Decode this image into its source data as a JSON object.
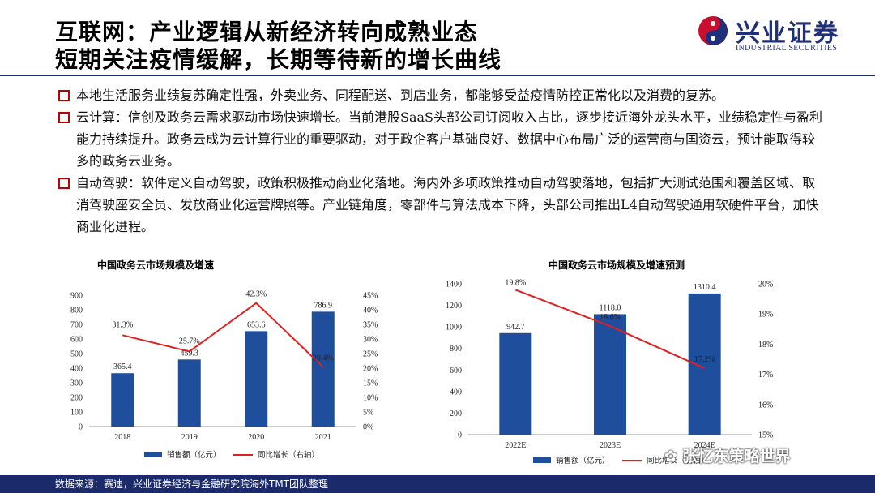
{
  "header": {
    "title_line1": "互联网：产业逻辑从新经济转向成熟业态",
    "title_line2": "短期关注疫情缓解，长期等待新的增长曲线"
  },
  "logo": {
    "cn": "兴业证券",
    "en": "INDUSTRIAL SECURITIES",
    "colors": {
      "red": "#c8102e",
      "blue": "#1f2f7a"
    }
  },
  "bullets": [
    "本地生活服务业绩复苏确定性强，外卖业务、同程配送、到店业务，都能够受益疫情防控正常化以及消费的复苏。",
    "云计算：信创及政务云需求驱动市场快速增长。当前港股SaaS头部公司订阅收入占比，逐步接近海外龙头水平，业绩稳定性与盈利能力持续提升。政务云成为云计算行业的重要驱动，对于政企客户基础良好、数据中心布局广泛的运营商与国资云，预计能取得较多的政务云业务。",
    "自动驾驶：软件定义自动驾驶，政策积极推动商业化落地。海内外多项政策推动自动驾驶落地，包括扩大测试范围和覆盖区域、取消驾驶座安全员、发放商业化运营牌照等。产业链角度，零部件与算法成本下降，头部公司推出L4自动驾驶通用软硬件平台，加快商业化进程。"
  ],
  "chart_data": [
    {
      "type": "bar",
      "title": "中国政务云市场规模及增速",
      "categories": [
        "2018",
        "2019",
        "2020",
        "2021"
      ],
      "series": [
        {
          "name": "销售额（亿元）",
          "type": "bar",
          "axis": "left",
          "values": [
            365.4,
            459.3,
            653.6,
            786.9
          ],
          "labels": [
            "365.4",
            "459.3",
            "653.6",
            "786.9"
          ]
        },
        {
          "name": "同比增长（右轴）",
          "type": "line",
          "axis": "right",
          "values": [
            31.3,
            25.7,
            42.3,
            20.4
          ],
          "labels": [
            "31.3%",
            "25.7%",
            "42.3%",
            "20.4%"
          ]
        }
      ],
      "ylim": [
        0,
        900
      ],
      "yticks": [
        "0",
        "100",
        "200",
        "300",
        "400",
        "500",
        "600",
        "700",
        "800",
        "900"
      ],
      "y2lim": [
        0,
        45
      ],
      "y2ticks": [
        "0%",
        "5%",
        "10%",
        "15%",
        "20%",
        "25%",
        "30%",
        "35%",
        "40%",
        "45%"
      ],
      "legend_position": "bottom",
      "colors": {
        "bar": "#1f4e9c",
        "line": "#e02020"
      }
    },
    {
      "type": "bar",
      "title": "中国政务云市场规模及增速预测",
      "categories": [
        "2022E",
        "2023E",
        "2024E"
      ],
      "series": [
        {
          "name": "销售额（亿元）",
          "type": "bar",
          "axis": "left",
          "values": [
            942.7,
            1118.0,
            1310.4
          ],
          "labels": [
            "942.7",
            "1118.0",
            "1310.4"
          ]
        },
        {
          "name": "同比增长（右轴）",
          "type": "line",
          "axis": "right",
          "values": [
            19.8,
            18.6,
            17.2
          ],
          "labels": [
            "19.8%",
            "18.6%",
            "17.2%"
          ]
        }
      ],
      "ylim": [
        0,
        1400
      ],
      "yticks": [
        "0",
        "200",
        "400",
        "600",
        "800",
        "1000",
        "1200",
        "1400"
      ],
      "y2lim": [
        15,
        20
      ],
      "y2ticks": [
        "15%",
        "16%",
        "17%",
        "18%",
        "19%",
        "20%"
      ],
      "legend_position": "bottom",
      "colors": {
        "bar": "#1f4e9c",
        "line": "#e02020"
      }
    }
  ],
  "footer": {
    "source": "数据来源：赛迪，兴业证券经济与金融研究院海外TMT团队整理"
  },
  "watermark": {
    "text": "张忆东策略世界"
  }
}
